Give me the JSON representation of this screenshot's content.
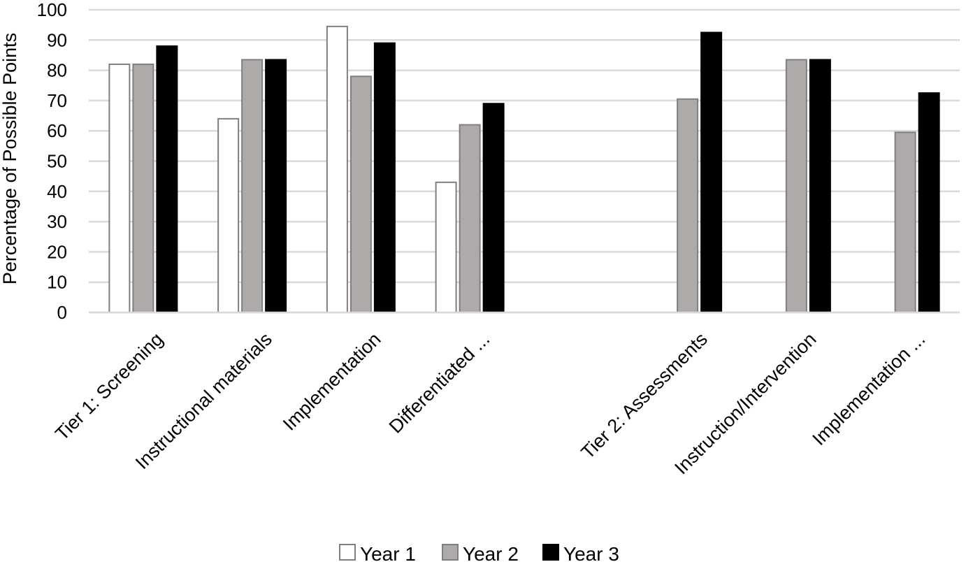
{
  "chart_data": {
    "type": "bar",
    "categories": [
      "Tier 1: Screening",
      "Instructional materials",
      "Implementation",
      "Differentiated ...",
      "",
      "Tier 2: Assessments",
      "Instruction/Intervention",
      "Implementation ..."
    ],
    "series": [
      {
        "name": "Year 1",
        "color": "#ffffff",
        "values": [
          82,
          64,
          94.5,
          43,
          null,
          null,
          null,
          null
        ]
      },
      {
        "name": "Year 2",
        "color": "#aeaaaa",
        "values": [
          82,
          83.5,
          78,
          62,
          null,
          70.5,
          83.5,
          59.5
        ]
      },
      {
        "name": "Year 3",
        "color": "#000000",
        "values": [
          88,
          83.5,
          89,
          69,
          null,
          92.5,
          83.5,
          72.5
        ]
      }
    ],
    "ylabel": "Percentage of Possible Points",
    "ylim": [
      0,
      100
    ],
    "yticks": [
      0,
      10,
      20,
      30,
      40,
      50,
      60,
      70,
      80,
      90,
      100
    ],
    "grid": true,
    "legend": "bottom"
  }
}
